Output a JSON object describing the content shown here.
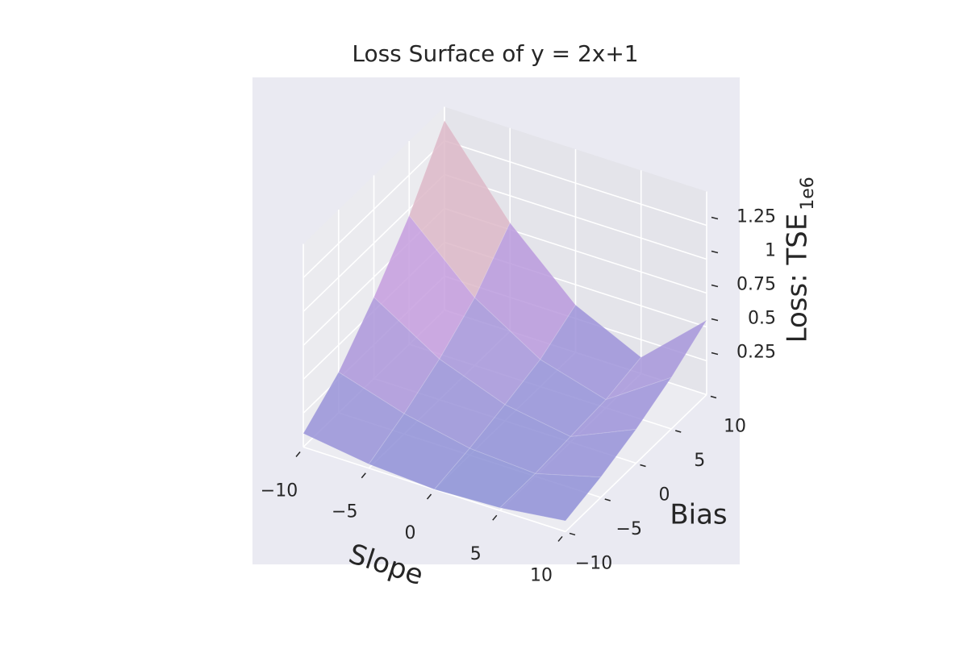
{
  "chart_data": {
    "type": "surface",
    "title": "Loss Surface of y = 2x+1",
    "xlabel": "Slope",
    "ylabel": "Bias",
    "zlabel": "Loss: TSE",
    "zoffset_label": "1e6",
    "x": [
      -10,
      -5,
      0,
      5,
      10
    ],
    "y": [
      -10,
      -5,
      0,
      5,
      10
    ],
    "z": [
      [
        0.1,
        0.03,
        0.0,
        0.02,
        0.08
      ],
      [
        0.3,
        0.15,
        0.05,
        0.02,
        0.15
      ],
      [
        0.6,
        0.3,
        0.12,
        0.04,
        0.25
      ],
      [
        0.95,
        0.5,
        0.2,
        0.06,
        0.38
      ],
      [
        1.4,
        0.8,
        0.35,
        0.12,
        0.55
      ]
    ],
    "xlim": [
      -10,
      10
    ],
    "ylim": [
      -10,
      10
    ],
    "zlim": [
      0,
      1.5
    ],
    "xticks": [
      {
        "value": -10,
        "label": "−10"
      },
      {
        "value": -5,
        "label": "−5"
      },
      0,
      5,
      10
    ],
    "yticks": [
      {
        "value": -10,
        "label": "−10"
      },
      {
        "value": -5,
        "label": "−5"
      },
      0,
      5,
      10
    ],
    "zticks": [
      0.25,
      0.5,
      0.75,
      1.0,
      1.25
    ],
    "grid": true
  }
}
